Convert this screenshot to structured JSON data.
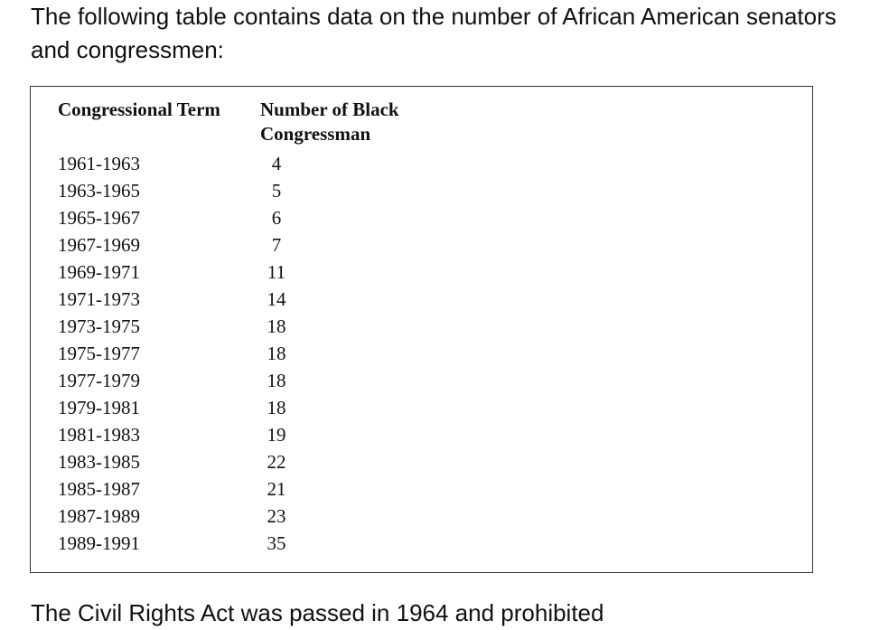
{
  "intro_text": "The following table contains data on the number of African American senators and congressmen:",
  "table": {
    "headers": {
      "term": "Congressional Term",
      "count": "Number of Black Congressman"
    },
    "rows": [
      {
        "term": "1961-1963",
        "count": "4"
      },
      {
        "term": "1963-1965",
        "count": "5"
      },
      {
        "term": "1965-1967",
        "count": "6"
      },
      {
        "term": "1967-1969",
        "count": "7"
      },
      {
        "term": "1969-1971",
        "count": "11"
      },
      {
        "term": "1971-1973",
        "count": "14"
      },
      {
        "term": "1973-1975",
        "count": "18"
      },
      {
        "term": "1975-1977",
        "count": "18"
      },
      {
        "term": "1977-1979",
        "count": "18"
      },
      {
        "term": "1979-1981",
        "count": "18"
      },
      {
        "term": "1981-1983",
        "count": "19"
      },
      {
        "term": "1983-1985",
        "count": "22"
      },
      {
        "term": "1985-1987",
        "count": "21"
      },
      {
        "term": "1987-1989",
        "count": "23"
      },
      {
        "term": "1989-1991",
        "count": "35"
      }
    ]
  },
  "chart_data": {
    "type": "table",
    "columns": [
      "Congressional Term",
      "Number of Black Congressman"
    ],
    "x": [
      "1961-1963",
      "1963-1965",
      "1965-1967",
      "1967-1969",
      "1969-1971",
      "1971-1973",
      "1973-1975",
      "1975-1977",
      "1977-1979",
      "1979-1981",
      "1981-1983",
      "1983-1985",
      "1985-1987",
      "1987-1989",
      "1989-1991"
    ],
    "values": [
      4,
      5,
      6,
      7,
      11,
      14,
      18,
      18,
      18,
      18,
      19,
      22,
      21,
      23,
      35
    ]
  },
  "outro_text": "The Civil Rights Act was passed in 1964 and prohibited"
}
